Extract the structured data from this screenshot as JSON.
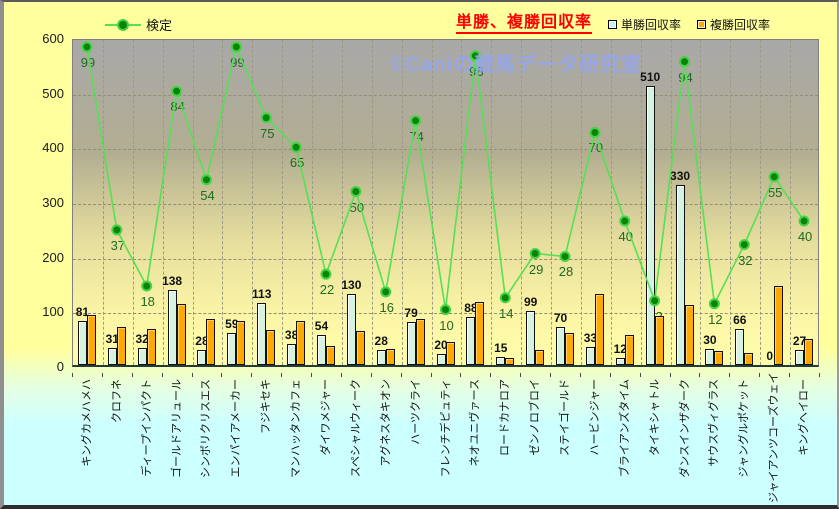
{
  "window": {
    "watermark": "©Caniの競馬データ研究室"
  },
  "chart_data": {
    "type": "bar",
    "subtype": "combo-bar-line",
    "title": "単勝、複勝回収率",
    "line_legend_label": "検定",
    "ylabel": "",
    "xlabel": "",
    "ylim": [
      0,
      600
    ],
    "yticks": [
      0,
      100,
      200,
      300,
      400,
      500,
      600
    ],
    "grid": "dashed horizontal and vertical",
    "legend_position": "top",
    "categories": [
      "キングカメハメハ",
      "クロフネ",
      "ディープインパクト",
      "ゴールドアリュール",
      "シンボリクリスエス",
      "エンパイアメーカー",
      "フジキセキ",
      "マンハッタンカフェ",
      "ダイワメジャー",
      "スペシャルウィーク",
      "アグネスタキオン",
      "ハーツクライ",
      "フレンチデピュティ",
      "ネオユニヴァース",
      "ロードカナロア",
      "ゼンノロブロイ",
      "ステイゴールド",
      "ハービンジャー",
      "ブライアンズタイム",
      "タイキシャトル",
      "ダンスインザダーク",
      "サウスヴィグラス",
      "ジャングルポケット",
      "ジャイアンツコーズウェイ",
      "キングヘイロー"
    ],
    "series": [
      {
        "name": "単勝回収率",
        "type": "bar",
        "color": "#D6F2E0",
        "labels_shown": true,
        "values": [
          81,
          31,
          32,
          138,
          28,
          59,
          113,
          38,
          54,
          130,
          28,
          79,
          20,
          88,
          15,
          99,
          70,
          33,
          12,
          510,
          330,
          30,
          66,
          0,
          27
        ]
      },
      {
        "name": "複勝回収率",
        "type": "bar",
        "color": "#FFA900",
        "labels_shown": false,
        "values": [
          92,
          69,
          65,
          111,
          85,
          81,
          64,
          80,
          34,
          62,
          29,
          84,
          43,
          116,
          13,
          28,
          58,
          130,
          55,
          90,
          110,
          26,
          22,
          145,
          48
        ]
      },
      {
        "name": "検定",
        "type": "line",
        "color": "#55E055",
        "marker_fill": "#0B840B",
        "marker_stroke": "#44D344",
        "labels_shown": true,
        "values": [
          99,
          37,
          18,
          84,
          54,
          99,
          75,
          65,
          22,
          50,
          16,
          74,
          10,
          96,
          14,
          29,
          28,
          70,
          40,
          13,
          94,
          12,
          32,
          55,
          40
        ],
        "plot_transform": {
          "scale": 5.4,
          "offset": 51,
          "note": "line plotted on hidden secondary axis: primary = value*5.4+51"
        }
      }
    ]
  },
  "colors": {
    "background_top": "#FFFF9E",
    "background_bottom": "#CCFFFF",
    "plot_top": "#A8A8A8",
    "plot_bottom": "#FFFFAA",
    "title": "#FF0000",
    "win_bar": "#D6F2E0",
    "place_bar": "#FFA900",
    "line": "#55E055",
    "line_label": "#1F6B1F",
    "watermark": "#91A5F5"
  }
}
